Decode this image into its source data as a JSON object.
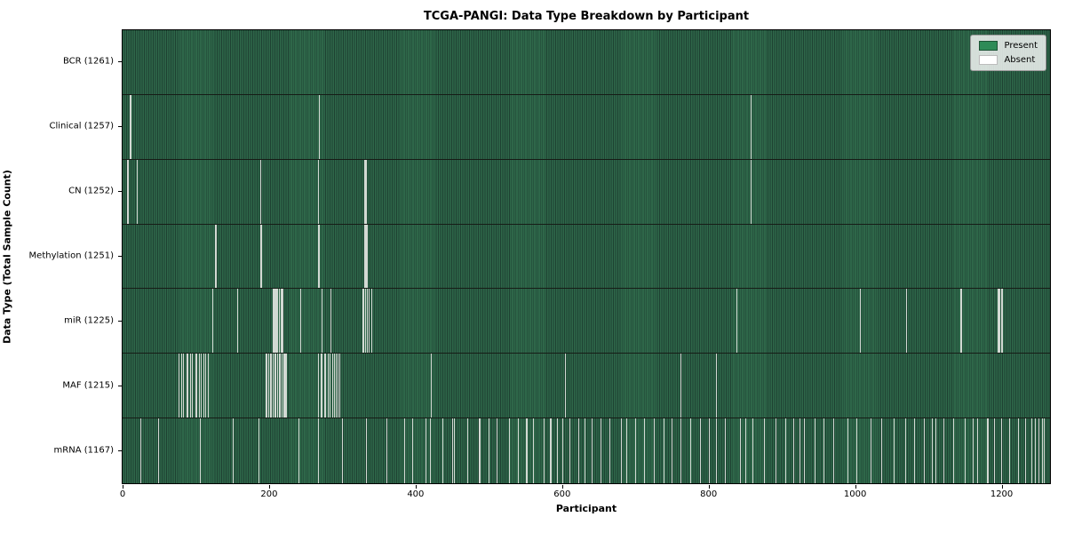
{
  "chart_data": {
    "type": "heatmap",
    "title": "TCGA-PANGI: Data Type Breakdown by Participant",
    "xlabel": "Participant",
    "ylabel": "Data Type (Total Sample Count)",
    "x_ticks": [
      0,
      200,
      400,
      600,
      800,
      1000,
      1200
    ],
    "x_max": 1266,
    "total_participants": 1261,
    "grid": false,
    "legend_position": "upper right",
    "legend": [
      {
        "label": "Present",
        "color": "#2e8b57"
      },
      {
        "label": "Absent",
        "color": "#ffffff"
      }
    ],
    "colors": {
      "present_field_light": "#2e6749",
      "present_field_dark": "#1e4132",
      "absent_line": "#d3d9d3",
      "row_separator": "#161c16",
      "plot_border": "#000000"
    },
    "rows": [
      {
        "label": "BCR",
        "count": 1261,
        "absent": []
      },
      {
        "label": "Clinical",
        "count": 1257,
        "absent": [
          10,
          11,
          268,
          857
        ]
      },
      {
        "label": "CN",
        "count": 1252,
        "absent": [
          6,
          7,
          20,
          188,
          267,
          330,
          331,
          332,
          857
        ]
      },
      {
        "label": "Methylation",
        "count": 1251,
        "absent": [
          126,
          127,
          188,
          189,
          267,
          268,
          330,
          331,
          332,
          333
        ]
      },
      {
        "label": "miR",
        "count": 1225,
        "absent": [
          123,
          156,
          205,
          206,
          207,
          208,
          210,
          211,
          213,
          214,
          216,
          217,
          218,
          243,
          272,
          284,
          328,
          329,
          331,
          334,
          336,
          339,
          340,
          838,
          1006,
          1007,
          1069,
          1070,
          1144,
          1145,
          1195,
          1196,
          1197,
          1199,
          1200,
          1201
        ]
      },
      {
        "label": "MAF",
        "count": 1215,
        "absent": [
          76,
          80,
          83,
          87,
          89,
          92,
          95,
          99,
          101,
          104,
          107,
          110,
          113,
          117,
          195,
          197,
          199,
          201,
          203,
          205,
          207,
          209,
          211,
          213,
          215,
          217,
          219,
          221,
          222,
          223,
          267,
          270,
          272,
          275,
          277,
          280,
          283,
          286,
          288,
          291,
          294,
          296,
          421,
          604,
          762,
          810
        ]
      },
      {
        "label": "mRNA",
        "count": 1167,
        "absent": [
          24,
          48,
          105,
          106,
          150,
          186,
          240,
          267,
          300,
          332,
          360,
          385,
          395,
          413,
          414,
          420,
          436,
          450,
          452,
          470,
          486,
          488,
          500,
          510,
          527,
          528,
          540,
          551,
          552,
          560,
          575,
          583,
          584,
          593,
          600,
          610,
          622,
          630,
          640,
          652,
          665,
          680,
          688,
          700,
          712,
          725,
          738,
          739,
          750,
          762,
          775,
          788,
          800,
          810,
          822,
          843,
          850,
          860,
          875,
          891,
          905,
          915,
          924,
          930,
          945,
          957,
          970,
          989,
          1002,
          1021,
          1035,
          1053,
          1068,
          1080,
          1094,
          1105,
          1110,
          1120,
          1134,
          1150,
          1160,
          1167,
          1180,
          1181,
          1190,
          1199,
          1210,
          1222,
          1232,
          1240,
          1245,
          1250,
          1255,
          1258
        ]
      }
    ]
  }
}
